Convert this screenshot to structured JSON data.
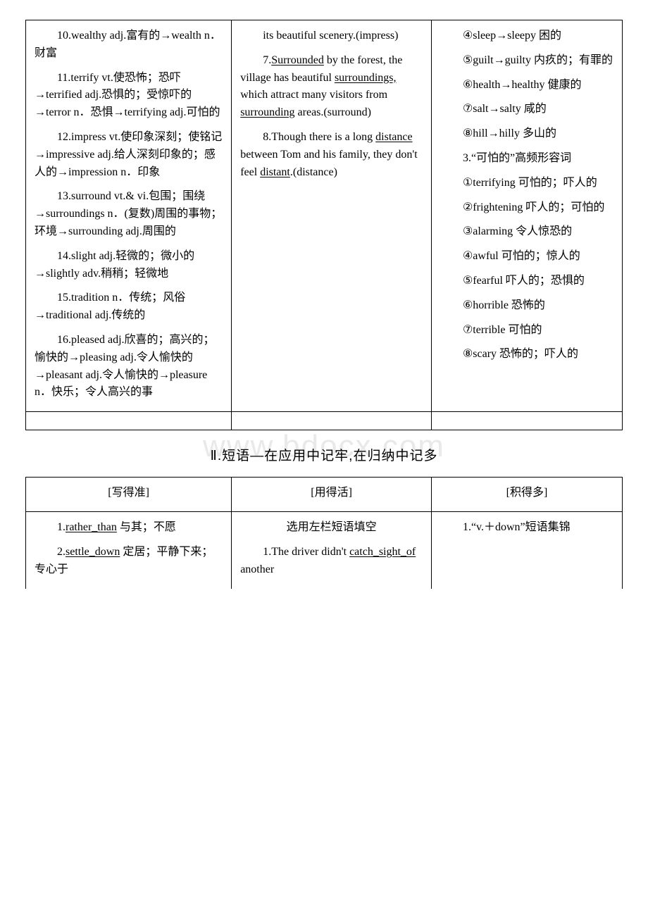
{
  "watermark": "www.bdocx.com",
  "table1": {
    "col1": [
      "10.wealthy adj.富有的→wealth n．财富",
      "11.terrify vt.使恐怖；恐吓→terrified adj.恐惧的；受惊吓的→terror n．恐惧→terrifying adj.可怕的",
      "12.impress vt.使印象深刻；使铭记→impressive adj.给人深刻印象的；感人的→impression n．印象",
      "13.surround vt.& vi.包围；围绕→surroundings n．(复数)周围的事物；环境→surrounding adj.周围的",
      "14.slight adj.轻微的；微小的→slightly adv.稍稍；轻微地",
      "15.tradition n．传统；风俗→traditional adj.传统的",
      "16.pleased adj.欣喜的；高兴的；愉快的→pleasing adj.令人愉快的→pleasant adj.令人愉快的→pleasure n．快乐；令人高兴的事"
    ],
    "col2": [
      {
        "pre": "its beautiful scenery.(impress)",
        "u": ""
      },
      {
        "pre": "7.",
        "u": "Surrounded",
        "post": " by the forest, the village has beautiful ",
        "u2": "surroundings,",
        "post2": "  which attract many visitors from ",
        "u3": "surrounding",
        "post3": " areas.(surround)"
      },
      {
        "pre": "8.Though there is a long ",
        "u": "distance",
        "post": " between Tom and his family, they don't feel ",
        "u2": "distant",
        "post2": ".(distance)"
      }
    ],
    "col3": [
      "④sleep→sleepy 困的",
      "⑤guilt→guilty 内疚的；有罪的",
      "⑥health→healthy 健康的",
      "⑦salt→salty 咸的",
      "⑧hill→hilly 多山的",
      "3.“可怕的”高频形容词",
      "①terrifying 可怕的；吓人的",
      "②frightening 吓人的；可怕的",
      "③alarming 令人惊恐的",
      "④awful 可怕的；惊人的",
      "⑤fearful 吓人的；恐惧的",
      "⑥horrible 恐怖的",
      "⑦terrible 可怕的",
      "⑧scary 恐怖的；吓人的"
    ]
  },
  "section2_title": "Ⅱ.短语—在应用中记牢,在归纳中记多",
  "table2": {
    "headers": [
      "[写得准]",
      "[用得活]",
      "[积得多]"
    ],
    "row": {
      "c1": [
        {
          "pre": "1.",
          "u": "rather_than",
          "post": " 与其；不愿"
        },
        {
          "pre": "2.",
          "u": "settle_down",
          "post": " 定居；平静下来；专心于"
        }
      ],
      "c2": [
        {
          "text": "选用左栏短语填空"
        },
        {
          "pre": "1.The driver didn't ",
          "u": "catch_sight_of",
          "post": " another"
        }
      ],
      "c3": [
        {
          "text": "1.“v.＋down”短语集锦"
        }
      ]
    }
  }
}
